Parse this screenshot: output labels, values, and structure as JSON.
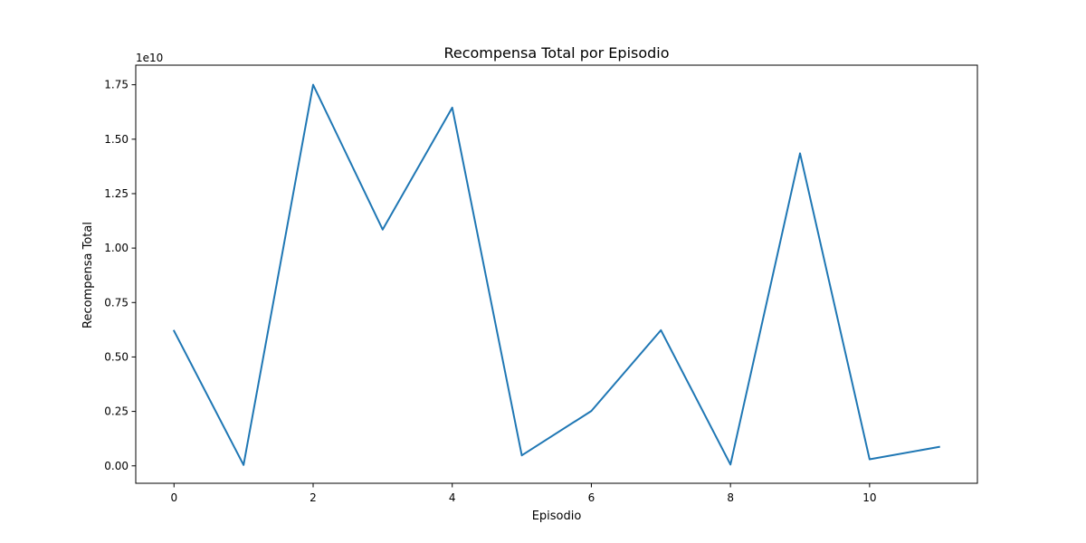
{
  "chart_data": {
    "type": "line",
    "title": "Recompensa Total por Episodio",
    "xlabel": "Episodio",
    "ylabel": "Recompensa Total",
    "y_offset_label": "1e10",
    "xlim": [
      -0.55,
      11.55
    ],
    "ylim": [
      -0.08,
      1.84
    ],
    "xticks": [
      0,
      2,
      4,
      6,
      8,
      10
    ],
    "xtick_labels": [
      "0",
      "2",
      "4",
      "6",
      "8",
      "10"
    ],
    "yticks": [
      0.0,
      0.25,
      0.5,
      0.75,
      1.0,
      1.25,
      1.5,
      1.75
    ],
    "ytick_labels": [
      "0.00",
      "0.25",
      "0.50",
      "0.75",
      "1.00",
      "1.25",
      "1.50",
      "1.75"
    ],
    "grid": false,
    "series": [
      {
        "color": "#1f77b4",
        "x": [
          0,
          1,
          2,
          3,
          4,
          5,
          6,
          7,
          8,
          9,
          10,
          11
        ],
        "y": [
          0.62,
          0.004,
          1.75,
          1.085,
          1.645,
          0.048,
          0.252,
          0.623,
          0.006,
          1.435,
          0.03,
          0.087
        ]
      }
    ]
  }
}
